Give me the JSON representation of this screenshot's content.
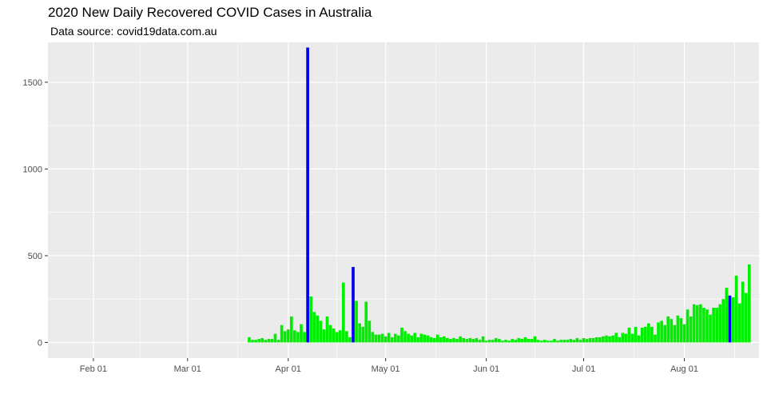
{
  "chart_data": {
    "type": "bar",
    "title": "2020 New Daily Recovered COVID Cases in Australia",
    "subtitle": "Data source: covid19data.com.au",
    "xlabel": "",
    "ylabel": "",
    "x_start": "2020-01-18",
    "x_end": "2020-08-24",
    "ylim": [
      -90,
      1730
    ],
    "y_ticks": [
      0,
      500,
      1000,
      1500
    ],
    "x_ticks": [
      {
        "date": "2020-02-01",
        "label": "Feb 01"
      },
      {
        "date": "2020-03-01",
        "label": "Mar 01"
      },
      {
        "date": "2020-04-01",
        "label": "Apr 01"
      },
      {
        "date": "2020-05-01",
        "label": "May 01"
      },
      {
        "date": "2020-06-01",
        "label": "Jun 01"
      },
      {
        "date": "2020-07-01",
        "label": "Jul 01"
      },
      {
        "date": "2020-08-01",
        "label": "Aug 01"
      }
    ],
    "grid": true,
    "colors": {
      "normal": "#00ee00",
      "highlight": "#0000ee",
      "panel": "#ebebeb",
      "grid": "#ffffff"
    },
    "series": [
      {
        "start_date": "2020-03-20",
        "values": [
          30,
          15,
          15,
          20,
          25,
          15,
          20,
          20,
          50,
          15,
          100,
          65,
          75,
          150,
          70,
          60,
          105,
          60,
          1700,
          265,
          175,
          155,
          125,
          75,
          150,
          100,
          80,
          60,
          70,
          345,
          65,
          30,
          435,
          240,
          110,
          90,
          235,
          125,
          60,
          45,
          45,
          50,
          35,
          55,
          30,
          50,
          40,
          85,
          65,
          50,
          40,
          55,
          30,
          50,
          45,
          40,
          30,
          25,
          45,
          30,
          35,
          25,
          20,
          25,
          20,
          35,
          25,
          20,
          25,
          20,
          25,
          15,
          35,
          10,
          15,
          15,
          25,
          20,
          10,
          15,
          10,
          20,
          15,
          25,
          20,
          30,
          20,
          20,
          35,
          15,
          10,
          15,
          10,
          10,
          20,
          10,
          15,
          15,
          15,
          20,
          15,
          25,
          15,
          25,
          20,
          25,
          25,
          30,
          30,
          35,
          40,
          35,
          40,
          55,
          30,
          55,
          50,
          85,
          50,
          90,
          40,
          85,
          90,
          110,
          90,
          45,
          115,
          125,
          100,
          150,
          135,
          100,
          155,
          140,
          105,
          190,
          150,
          220,
          215,
          220,
          200,
          190,
          160,
          200,
          200,
          220,
          250,
          315,
          270,
          260,
          385,
          225,
          350,
          285,
          450
        ],
        "highlight_dates": [
          "2020-04-07",
          "2020-04-21",
          "2020-08-15"
        ]
      }
    ]
  }
}
